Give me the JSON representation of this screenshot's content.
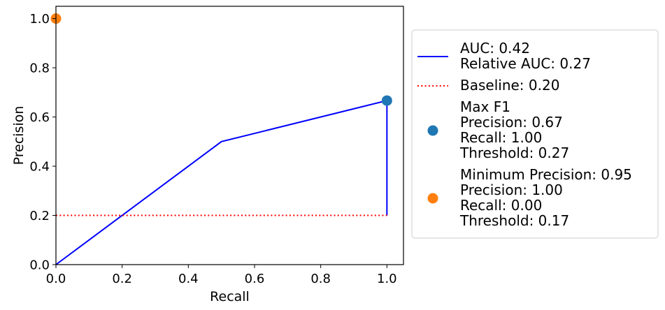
{
  "chart_data": {
    "type": "line",
    "xlabel": "Recall",
    "ylabel": "Precision",
    "xlim": [
      0.0,
      1.05
    ],
    "ylim": [
      0.0,
      1.05
    ],
    "grid": false,
    "legend_position": "right, outside plot",
    "xticks": [
      0.0,
      0.2,
      0.4,
      0.6,
      0.8,
      1.0
    ],
    "yticks": [
      0.0,
      0.2,
      0.4,
      0.6,
      0.8,
      1.0
    ],
    "xtick_labels": [
      "0.0",
      "0.2",
      "0.4",
      "0.6",
      "0.8",
      "1.0"
    ],
    "ytick_labels": [
      "0.0",
      "0.2",
      "0.4",
      "0.6",
      "0.8",
      "1.0"
    ],
    "series": [
      {
        "kind": "line",
        "style": "solid",
        "color": "#0000ff",
        "x": [
          0.0,
          0.5,
          1.0,
          1.0
        ],
        "y": [
          0.0,
          0.5,
          0.6667,
          0.2
        ],
        "legend": [
          "AUC: 0.42",
          "Relative AUC: 0.27"
        ]
      },
      {
        "kind": "line",
        "style": "dotted",
        "color": "#ff0000",
        "x": [
          0.0,
          1.0
        ],
        "y": [
          0.2,
          0.2
        ],
        "legend": [
          "Baseline: 0.20"
        ]
      },
      {
        "kind": "point",
        "color": "#1f77b4",
        "x": [
          1.0
        ],
        "y": [
          0.6667
        ],
        "legend": [
          "Max F1",
          "Precision: 0.67",
          "Recall: 1.00",
          "Threshold: 0.27"
        ]
      },
      {
        "kind": "point",
        "color": "#ff7f0e",
        "x": [
          0.0
        ],
        "y": [
          1.0
        ],
        "legend": [
          "Minimum Precision: 0.95",
          "Precision: 1.00",
          "Recall: 0.00",
          "Threshold: 0.17"
        ]
      }
    ]
  }
}
